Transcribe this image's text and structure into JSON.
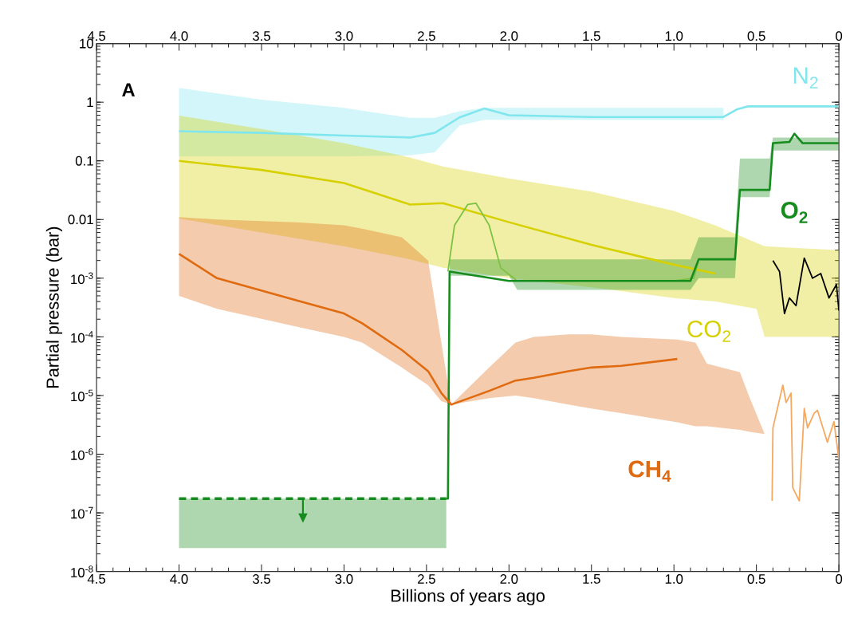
{
  "chart_data": {
    "type": "line",
    "xlabel": "Billions of years ago",
    "ylabel": "Partial pressure (bar)",
    "annotations": [
      "A"
    ],
    "xlim": [
      4.5,
      0
    ],
    "ylim": [
      1e-08,
      10
    ],
    "log": "y",
    "marker": "none",
    "xticks": [
      4.5,
      {
        "value": 4,
        "label": "4.0"
      },
      3.5,
      {
        "value": 3,
        "label": "3.0"
      },
      2.5,
      {
        "value": 2,
        "label": "2.0"
      },
      1.5,
      {
        "value": 1,
        "label": "1.0"
      },
      0.5,
      0
    ],
    "x2lim": [
      4.5,
      0
    ],
    "x2ticks": [
      4.5,
      {
        "value": 4,
        "label": "4.0"
      },
      3.5,
      {
        "value": 3,
        "label": "3.0"
      },
      2.5,
      {
        "value": 2,
        "label": "2.0"
      },
      1.5,
      {
        "value": 1,
        "label": "1.0"
      },
      0.5,
      0
    ],
    "yticks": [
      {
        "value": 1e-08,
        "label": "10$^{-8}$"
      },
      {
        "value": 1e-07,
        "label": "10$^{-7}$"
      },
      {
        "value": 1e-06,
        "label": "10$^{-6}$"
      },
      {
        "value": 1e-05,
        "label": "10$^{-5}$"
      },
      {
        "value": 0.0001,
        "label": "10$^{-4}$"
      },
      {
        "value": 0.001,
        "label": "10$^{-3}$"
      },
      0.01,
      0.1,
      1,
      10
    ],
    "series": [
      {
        "name": "N$_{2}$",
        "color": "#7fe6ee",
        "x": [
          4.0,
          3.5,
          3.0,
          2.6,
          2.45,
          2.3,
          2.15,
          2.0,
          1.5,
          1.0,
          0.7,
          0.62,
          0.55,
          0
        ],
        "values": [
          0.32,
          0.3,
          0.27,
          0.25,
          0.3,
          0.55,
          0.78,
          0.6,
          0.56,
          0.56,
          0.56,
          0.75,
          0.85,
          0.85
        ],
        "lower": [
          0.12,
          0.12,
          0.12,
          0.124,
          0.14,
          0.4,
          0.5,
          0.5,
          0.5,
          0.5,
          0.5,
          null,
          null,
          null
        ],
        "upper": [
          1.75,
          1.1,
          0.8,
          0.54,
          0.54,
          0.7,
          0.8,
          0.8,
          0.8,
          0.8,
          0.8,
          null,
          null,
          null
        ]
      },
      {
        "name": "CO$_{2}$",
        "color": "#d6d000",
        "x": [
          4.0,
          3.5,
          3.0,
          2.6,
          2.4,
          2.0,
          1.5,
          1.0,
          0.75,
          0.5,
          0.45,
          0
        ],
        "values": [
          0.1,
          0.07,
          0.042,
          0.018,
          0.019,
          0.009,
          0.0037,
          0.0017,
          0.0012,
          null,
          null,
          null
        ],
        "lower": [
          0.0104,
          0.006,
          0.0035,
          0.0021,
          0.0015,
          0.001,
          0.0007,
          0.00046,
          0.0004,
          0.0003,
          0.0001,
          0.0001
        ],
        "upper": [
          0.59,
          0.35,
          0.2,
          0.114,
          0.08,
          0.05,
          0.03,
          0.014,
          0.008,
          0.004,
          0.0035,
          0.003
        ]
      },
      {
        "color": "#000000",
        "x": [
          0.4,
          0.36,
          0.33,
          0.3,
          0.26,
          0.21,
          0.16,
          0.11,
          0.06,
          0.015,
          0
        ],
        "values": [
          0.002,
          0.0013,
          0.00025,
          0.00046,
          0.00034,
          0.0022,
          0.001,
          0.0012,
          0.00046,
          0.00078,
          0.00028
        ]
      },
      {
        "color": "#7cc242",
        "x": [
          2.37,
          2.33,
          2.25,
          2.2,
          2.12,
          2.05,
          1.95,
          1.0,
          0.88,
          0.85
        ],
        "values": [
          0.0013,
          0.008,
          0.018,
          0.019,
          0.008,
          0.0015,
          0.0009,
          0.0009,
          0.001,
          0.002
        ]
      },
      {
        "color": "#168c1e",
        "line_style": "dashed",
        "x": [
          4.0,
          2.38
        ],
        "values": [
          1.75e-07,
          1.75e-07
        ],
        "lower": [
          2.5e-08,
          2.5e-08
        ],
        "upper": [
          1.75e-07,
          1.75e-07
        ]
      },
      {
        "name": "O$_{2}$",
        "color": "#168c1e",
        "x": [
          2.38,
          2.37,
          2.36,
          2.2,
          2.0,
          1.95,
          1.5,
          0.9,
          0.85,
          0.63,
          0.6,
          0.42,
          0.4,
          0.3,
          0.27,
          0.22,
          0
        ],
        "values": [
          1.75e-07,
          1.75e-07,
          0.0013,
          0.0011,
          0.0009,
          0.0009,
          0.0009,
          0.0009,
          0.0021,
          0.0021,
          0.032,
          0.032,
          0.2,
          0.21,
          0.29,
          0.2,
          0.2
        ],
        "lower": [
          null,
          null,
          0.0011,
          0.0011,
          0.0011,
          0.00063,
          0.00063,
          0.00063,
          0.001,
          0.001,
          0.024,
          0.024,
          0.15,
          0.15,
          0.15,
          0.15,
          0.15
        ],
        "upper": [
          null,
          null,
          0.0021,
          0.0021,
          0.0021,
          0.0021,
          0.0021,
          0.0021,
          0.005,
          0.005,
          0.11,
          0.11,
          0.25,
          0.25,
          0.25,
          0.25,
          0.25
        ]
      },
      {
        "name": "CH$_{4}$",
        "color": "#e06a10",
        "x": [
          4.0,
          3.77,
          3.29,
          3.0,
          2.89,
          2.65,
          2.49,
          2.41,
          2.35,
          2.12,
          1.96,
          1.85,
          1.64,
          1.5,
          1.32,
          0.98,
          0.87,
          0.8,
          0.6,
          0.54,
          0.45
        ],
        "values": [
          0.0026,
          0.001,
          0.00042,
          0.00025,
          0.00017,
          6e-05,
          2.6e-05,
          1.1e-05,
          7e-06,
          1.2e-05,
          1.8e-05,
          2e-05,
          2.6e-05,
          3e-05,
          3.2e-05,
          4.2e-05,
          null,
          null,
          null,
          null,
          null
        ],
        "lower": [
          0.0005,
          0.0003,
          0.00015,
          0.0001,
          8e-05,
          3e-05,
          1.5e-05,
          8e-06,
          7e-06,
          9e-06,
          1e-05,
          9e-06,
          7e-06,
          6e-06,
          5e-06,
          3.5e-06,
          3e-06,
          3e-06,
          2.6e-06,
          2.4e-06,
          2.2e-06
        ],
        "upper": [
          0.011,
          0.01,
          0.009,
          0.008,
          0.007,
          0.005,
          0.002,
          8e-05,
          7e-06,
          3e-05,
          8e-05,
          0.0001,
          0.00011,
          0.00011,
          0.0001,
          9e-05,
          8e-05,
          3.5e-05,
          2.5e-05,
          9e-06,
          2.2e-06
        ]
      },
      {
        "color": "#f5a860",
        "x": [
          0.405,
          0.4,
          0.34,
          0.32,
          0.29,
          0.28,
          0.24,
          0.21,
          0.19,
          0.15,
          0.13,
          0.07,
          0.03,
          0
        ],
        "values": [
          1.6e-07,
          2.8e-06,
          1.5e-05,
          7.6e-06,
          1.1e-05,
          2.7e-07,
          1.6e-07,
          6e-06,
          2.8e-06,
          5e-06,
          5.6e-06,
          1.6e-06,
          3.6e-06,
          8e-07
        ]
      }
    ]
  }
}
